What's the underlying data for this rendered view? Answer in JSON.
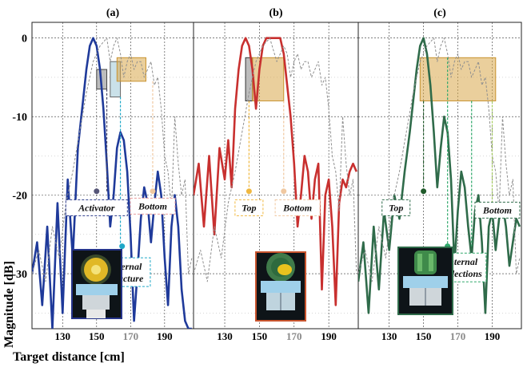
{
  "chart_data": {
    "type": "line",
    "xlabel": "Target distance [cm]",
    "ylabel": "Magnitude [dB]",
    "ylim": [
      -37,
      2
    ],
    "yticks": [
      "0",
      "-10",
      "-20",
      "-30"
    ],
    "grid": true,
    "panels": [
      {
        "title": "(a)",
        "xlim": [
          112,
          207
        ],
        "xticks": [
          {
            "v": 130,
            "label": "130",
            "faded": false
          },
          {
            "v": 150,
            "label": "150",
            "faded": false
          },
          {
            "v": 170,
            "label": "170",
            "faded": true
          },
          {
            "v": 190,
            "label": "190",
            "faded": false
          }
        ],
        "series": [
          {
            "role": "measured",
            "color": "#1f3a9a",
            "x": [
              112,
              115,
              118,
              121,
              124,
              127,
              130,
              133,
              136,
              139,
              142,
              144,
              146,
              148,
              150,
              152,
              154,
              156,
              158,
              160,
              162,
              164,
              166,
              168,
              170,
              172,
              174,
              176,
              178,
              180,
              182,
              184,
              186,
              188,
              190,
              192,
              194,
              196,
              198,
              200,
              202,
              204,
              206
            ],
            "y": [
              -30,
              -26,
              -34,
              -24,
              -37,
              -21,
              -35,
              -18,
              -28,
              -14,
              -8,
              -4,
              -1,
              0,
              -1,
              -4,
              -9,
              -16,
              -24,
              -20,
              -14,
              -12,
              -13,
              -17,
              -25,
              -36,
              -30,
              -23,
              -19,
              -21,
              -26,
              -21,
              -17,
              -20,
              -28,
              -34,
              -24,
              -20,
              -24,
              -32,
              -36,
              -37,
              -37
            ]
          },
          {
            "role": "reference",
            "color": "#8f8f8f",
            "x": [
              112,
              116,
              120,
              124,
              128,
              132,
              136,
              140,
              144,
              148,
              152,
              156,
              158,
              160,
              162,
              164,
              166,
              168,
              170,
              172,
              174,
              176,
              178,
              180,
              182,
              184,
              186,
              188,
              190,
              192,
              194,
              196,
              198,
              200,
              202,
              204,
              206
            ],
            "y": [
              -30,
              -27,
              -31,
              -24,
              -28,
              -21,
              -17,
              -12,
              -7,
              -3,
              -1,
              0,
              -3,
              -1,
              0,
              -2,
              -5,
              -3,
              -2,
              -4,
              -3,
              -3,
              -5,
              -4,
              -3,
              -6,
              -5,
              -9,
              -15,
              -17,
              -22,
              -10,
              -16,
              -20,
              -18,
              -30,
              -28
            ]
          }
        ],
        "boxes": [
          {
            "x0": 150,
            "x1": 156,
            "y0": -4,
            "y1": -6.5,
            "fill": "#b0b0b0",
            "opacity": 0.85,
            "stroke": "#444444"
          },
          {
            "x0": 158,
            "x1": 164,
            "y0": -3,
            "y1": -7.5,
            "fill": "#c4dee7",
            "opacity": 0.9,
            "stroke": "#666666"
          },
          {
            "x0": 162,
            "x1": 179,
            "y0": -2.5,
            "y1": -5.5,
            "fill": "#d9a84a",
            "opacity": 0.55,
            "stroke": "#c8922e"
          }
        ],
        "annotations": [
          {
            "text": "Activator",
            "x": 150,
            "y": -19.5,
            "label_x": 150,
            "label_y": -21.6,
            "color": "#2b3a8a",
            "dot": "#555577"
          },
          {
            "text": "Bottom",
            "x": 183,
            "y": -19.5,
            "label_x": 183,
            "label_y": -21.4,
            "color": "#e89c9c",
            "dot": "#f0c8a0"
          },
          {
            "text": "Internal",
            "text2": "structure",
            "x": 165,
            "y": -26.5,
            "label_x": 167,
            "label_y": -29.8,
            "color": "#1fa8c8",
            "dot": "#1fa8c8"
          }
        ],
        "dashes": [
          {
            "x": 156,
            "y_top": -6.5,
            "y_bot": -19.5,
            "color": "#444466"
          },
          {
            "x": 164,
            "y_top": -7.5,
            "y_bot": -26.5,
            "color": "#1fa8c8"
          },
          {
            "x": 183,
            "y_top": -5.5,
            "y_bot": -19.5,
            "color": "#f0c8a0"
          }
        ]
      },
      {
        "title": "(b)",
        "xlim": [
          112,
          207
        ],
        "xticks": [
          {
            "v": 130,
            "label": "130",
            "faded": false
          },
          {
            "v": 150,
            "label": "150",
            "faded": false
          },
          {
            "v": 170,
            "label": "170",
            "faded": true
          },
          {
            "v": 190,
            "label": "190",
            "faded": false
          }
        ],
        "series": [
          {
            "role": "measured",
            "color": "#c8302f",
            "x": [
              112,
              115,
              118,
              121,
              124,
              127,
              130,
              132,
              134,
              136,
              138,
              140,
              142,
              144,
              146,
              148,
              150,
              152,
              154,
              156,
              158,
              160,
              162,
              164,
              166,
              168,
              170,
              172,
              174,
              176,
              178,
              180,
              182,
              184,
              186,
              188,
              190,
              192,
              194,
              196,
              198,
              200,
              202,
              204,
              206
            ],
            "y": [
              -20,
              -16,
              -24,
              -15,
              -25,
              -14,
              -18,
              -13,
              -19,
              -9,
              -4,
              -1,
              0,
              -1,
              -4,
              -9,
              -4,
              -1,
              0,
              0,
              0,
              0,
              0,
              -2,
              -6,
              -10,
              -16,
              -24,
              -20,
              -15,
              -17,
              -23,
              -18,
              -16,
              -32,
              -20,
              -18,
              -24,
              -34,
              -21,
              -18,
              -19,
              -17,
              -16,
              -17
            ]
          },
          {
            "role": "reference",
            "color": "#8f8f8f",
            "x": [
              112,
              116,
              120,
              124,
              128,
              132,
              136,
              140,
              144,
              148,
              152,
              156,
              160,
              164,
              166,
              168,
              170,
              172,
              174,
              176,
              178,
              180,
              182,
              184,
              186,
              188,
              190,
              192,
              194,
              196,
              198,
              200,
              202,
              204,
              206
            ],
            "y": [
              -30,
              -27,
              -31,
              -24,
              -28,
              -21,
              -17,
              -12,
              -7,
              -3,
              -1,
              0,
              -3,
              -1,
              -2,
              -5,
              -3,
              -2,
              -4,
              -3,
              -3,
              -5,
              -4,
              -3,
              -6,
              -5,
              -9,
              -15,
              -17,
              -22,
              -10,
              -16,
              -20,
              -18,
              -30
            ]
          }
        ],
        "boxes": [
          {
            "x0": 142,
            "x1": 146,
            "y0": -2.5,
            "y1": -8,
            "fill": "#b0b0b0",
            "opacity": 0.85,
            "stroke": "#333333"
          },
          {
            "x0": 146,
            "x1": 164,
            "y0": -2.5,
            "y1": -8,
            "fill": "#d9a84a",
            "opacity": 0.55,
            "stroke": "#c8922e"
          }
        ],
        "annotations": [
          {
            "text": "Top",
            "x": 144,
            "y": -19.5,
            "label_x": 144,
            "label_y": -21.6,
            "color": "#f0b840",
            "dot": "#f0b840"
          },
          {
            "text": "Bottom",
            "x": 164,
            "y": -19.5,
            "label_x": 172,
            "label_y": -21.6,
            "color": "#f0c8a0",
            "dot": "#f0c8a0"
          }
        ],
        "dashes": [
          {
            "x": 144,
            "y_top": -8,
            "y_bot": -19.5,
            "color": "#f0b840"
          },
          {
            "x": 164,
            "y_top": -8,
            "y_bot": -19.5,
            "color": "#f0c8a0"
          }
        ]
      },
      {
        "title": "(c)",
        "xlim": [
          112,
          207
        ],
        "xticks": [
          {
            "v": 130,
            "label": "130",
            "faded": false
          },
          {
            "v": 150,
            "label": "150",
            "faded": false
          },
          {
            "v": 170,
            "label": "170",
            "faded": true
          },
          {
            "v": 190,
            "label": "190",
            "faded": false
          }
        ],
        "series": [
          {
            "role": "measured",
            "color": "#2f6b4a",
            "x": [
              112,
              115,
              118,
              121,
              124,
              127,
              130,
              133,
              136,
              139,
              142,
              144,
              146,
              148,
              150,
              152,
              154,
              156,
              158,
              160,
              162,
              164,
              166,
              168,
              170,
              172,
              174,
              176,
              178,
              180,
              182,
              184,
              186,
              188,
              190,
              192,
              194,
              196,
              198,
              200,
              202,
              204,
              206
            ],
            "y": [
              -31,
              -26,
              -35,
              -24,
              -32,
              -22,
              -27,
              -20,
              -23,
              -17,
              -12,
              -8,
              -4,
              -1,
              0,
              -2,
              -6,
              -12,
              -19,
              -14,
              -10,
              -12,
              -18,
              -29,
              -22,
              -17,
              -19,
              -24,
              -28,
              -22,
              -20,
              -26,
              -35,
              -24,
              -22,
              -27,
              -23,
              -21,
              -24,
              -29,
              -26,
              -23,
              -24
            ]
          },
          {
            "role": "reference",
            "color": "#8f8f8f",
            "x": [
              112,
              116,
              120,
              124,
              128,
              132,
              136,
              140,
              144,
              148,
              152,
              156,
              158,
              160,
              162,
              164,
              166,
              168,
              170,
              172,
              174,
              176,
              178,
              180,
              182,
              184,
              186,
              188,
              190,
              192,
              194,
              196,
              198,
              200,
              202,
              204,
              206
            ],
            "y": [
              -30,
              -27,
              -31,
              -24,
              -28,
              -21,
              -17,
              -12,
              -7,
              -3,
              -1,
              0,
              -3,
              -1,
              0,
              -2,
              -5,
              -3,
              -2,
              -4,
              -3,
              -3,
              -5,
              -4,
              -3,
              -6,
              -5,
              -9,
              -15,
              -17,
              -22,
              -10,
              -16,
              -20,
              -18,
              -30,
              -28
            ]
          }
        ],
        "boxes": [
          {
            "x0": 148,
            "x1": 192,
            "y0": -2.5,
            "y1": -8,
            "fill": "#d9a84a",
            "opacity": 0.55,
            "stroke": "#c8922e"
          }
        ],
        "annotations": [
          {
            "text": "Top",
            "x": 150,
            "y": -19.5,
            "label_x": 134,
            "label_y": -21.6,
            "color": "#2f6b4a",
            "dot": "#1f5a2a"
          },
          {
            "text": "Bottom",
            "x": 190,
            "y": -21.5,
            "label_x": 193,
            "label_y": -21.9,
            "color": "#2f6b4a",
            "dot": "#a8d060"
          },
          {
            "text": "Internal",
            "text2": "reflections",
            "x": 164,
            "y": -26.5,
            "label_x": 172,
            "label_y": -29.2,
            "color": "#2fa86a",
            "dot": "#2fa86a"
          }
        ],
        "dashes": [
          {
            "x": 150,
            "y_top": -8,
            "y_bot": -19.5,
            "color": "#1f5a2a"
          },
          {
            "x": 164,
            "y_top": -2.5,
            "y_bot": -26.5,
            "color": "#2fa86a"
          },
          {
            "x": 178,
            "y_top": -8,
            "y_bot": -26.5,
            "color": "#2fa86a"
          },
          {
            "x": 190,
            "y_top": -8,
            "y_bot": -21.5,
            "color": "#a8d060"
          }
        ]
      }
    ]
  }
}
